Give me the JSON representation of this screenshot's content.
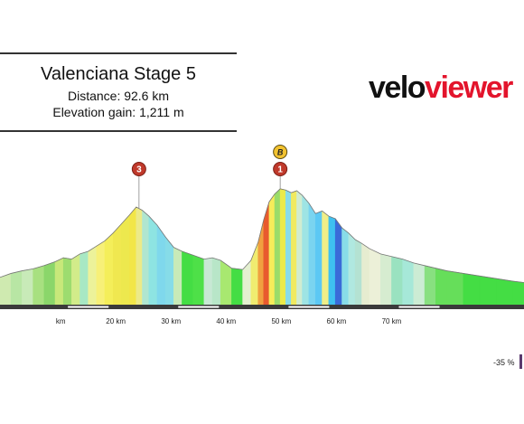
{
  "header": {
    "title": "Valenciana Stage 5",
    "distance": "Distance: 92.6 km",
    "elevation_gain": "Elevation gain: 1,211 m"
  },
  "logo": {
    "part1": "velo",
    "part2": "viewer"
  },
  "legend": {
    "label": "-35 %"
  },
  "colors": {
    "accent": "#e3142c",
    "marker": "#c0392b",
    "bonus": "#f2c230"
  },
  "chart_data": {
    "type": "area",
    "xlim": [
      -1,
      94
    ],
    "x_ticks": [
      {
        "x": 10,
        "label": "km"
      },
      {
        "x": 20,
        "label": "20 km"
      },
      {
        "x": 30,
        "label": "30 km"
      },
      {
        "x": 40,
        "label": "40 km"
      },
      {
        "x": 50,
        "label": "50 km"
      },
      {
        "x": 60,
        "label": "60 km"
      },
      {
        "x": 70,
        "label": "70 km"
      }
    ],
    "profile": [
      {
        "x": -1,
        "y": 42,
        "c": "#cfeab0"
      },
      {
        "x": 1,
        "y": 48,
        "c": "#b8e6a4"
      },
      {
        "x": 3,
        "y": 52,
        "c": "#c8eab8"
      },
      {
        "x": 5,
        "y": 55,
        "c": "#a8e080"
      },
      {
        "x": 7,
        "y": 60,
        "c": "#8bd66a"
      },
      {
        "x": 9,
        "y": 66,
        "c": "#c8e87a"
      },
      {
        "x": 10.5,
        "y": 72,
        "c": "#9ddc6f"
      },
      {
        "x": 12,
        "y": 70,
        "c": "#d2ec8a"
      },
      {
        "x": 13.5,
        "y": 78,
        "c": "#a8e8c4"
      },
      {
        "x": 15,
        "y": 82,
        "c": "#ecf29a"
      },
      {
        "x": 16.5,
        "y": 90,
        "c": "#f7f078"
      },
      {
        "x": 18,
        "y": 98,
        "c": "#f4ee5a"
      },
      {
        "x": 19.5,
        "y": 110,
        "c": "#f0e850"
      },
      {
        "x": 21,
        "y": 124,
        "c": "#ede84e"
      },
      {
        "x": 22.5,
        "y": 138,
        "c": "#f2e648"
      },
      {
        "x": 23.7,
        "y": 150,
        "c": "#ecea88"
      },
      {
        "x": 24.8,
        "y": 145,
        "c": "#b0e6d0"
      },
      {
        "x": 26,
        "y": 136,
        "c": "#8ee4e2"
      },
      {
        "x": 27.5,
        "y": 122,
        "c": "#7fd8ec"
      },
      {
        "x": 29,
        "y": 104,
        "c": "#86dce8"
      },
      {
        "x": 30.5,
        "y": 88,
        "c": "#c8eab8"
      },
      {
        "x": 32,
        "y": 82,
        "c": "#44dd44"
      },
      {
        "x": 34,
        "y": 76,
        "c": "#4ee048"
      },
      {
        "x": 36,
        "y": 70,
        "c": "#c8e8d4"
      },
      {
        "x": 37.5,
        "y": 72,
        "c": "#b8e6c8"
      },
      {
        "x": 39,
        "y": 68,
        "c": "#a8e870"
      },
      {
        "x": 41,
        "y": 56,
        "c": "#44dd44"
      },
      {
        "x": 43,
        "y": 54,
        "c": "#e4f0d0"
      },
      {
        "x": 44.5,
        "y": 68,
        "c": "#f0ec70"
      },
      {
        "x": 45.8,
        "y": 96,
        "c": "#f0a040"
      },
      {
        "x": 46.8,
        "y": 130,
        "c": "#e85a2e"
      },
      {
        "x": 47.8,
        "y": 158,
        "c": "#f6ec5a"
      },
      {
        "x": 48.8,
        "y": 170,
        "c": "#9adc6a"
      },
      {
        "x": 49.8,
        "y": 178,
        "c": "#ecea48"
      },
      {
        "x": 50.8,
        "y": 176,
        "c": "#88dce8"
      },
      {
        "x": 51.8,
        "y": 172,
        "c": "#f0ea60"
      },
      {
        "x": 52.8,
        "y": 175,
        "c": "#d0ecd0"
      },
      {
        "x": 53.8,
        "y": 168,
        "c": "#9ee4e4"
      },
      {
        "x": 55,
        "y": 156,
        "c": "#7ad4f0"
      },
      {
        "x": 56.2,
        "y": 140,
        "c": "#5cc8f4"
      },
      {
        "x": 57.4,
        "y": 144,
        "c": "#f0ee88"
      },
      {
        "x": 58.6,
        "y": 136,
        "c": "#3ec0f0"
      },
      {
        "x": 59.8,
        "y": 132,
        "c": "#3a6ad8"
      },
      {
        "x": 61,
        "y": 118,
        "c": "#88dce8"
      },
      {
        "x": 62.2,
        "y": 110,
        "c": "#b0e8e0"
      },
      {
        "x": 63.4,
        "y": 100,
        "c": "#b4e2d2"
      },
      {
        "x": 64.6,
        "y": 94,
        "c": "#e6ecd0"
      },
      {
        "x": 66,
        "y": 86,
        "c": "#ecf0d8"
      },
      {
        "x": 68,
        "y": 78,
        "c": "#d6ecd0"
      },
      {
        "x": 70,
        "y": 74,
        "c": "#9ae2c0"
      },
      {
        "x": 72,
        "y": 70,
        "c": "#a6e8d8"
      },
      {
        "x": 74,
        "y": 64,
        "c": "#ccecd4"
      },
      {
        "x": 76,
        "y": 60,
        "c": "#88e080"
      },
      {
        "x": 78,
        "y": 56,
        "c": "#66de5a"
      },
      {
        "x": 80,
        "y": 52,
        "c": "#66de5a"
      },
      {
        "x": 83,
        "y": 48,
        "c": "#44dd44"
      },
      {
        "x": 86,
        "y": 44,
        "c": "#44dd44"
      },
      {
        "x": 89,
        "y": 40,
        "c": "#44dd44"
      },
      {
        "x": 92,
        "y": 36,
        "c": "#44dd44"
      },
      {
        "x": 94,
        "y": 34,
        "c": "#44dd44"
      }
    ],
    "markers": [
      {
        "x": 24.2,
        "label": "3",
        "type": "climb"
      },
      {
        "x": 49.8,
        "label": "1",
        "type": "climb"
      },
      {
        "x": 49.8,
        "label": "B",
        "type": "bonus"
      }
    ]
  }
}
